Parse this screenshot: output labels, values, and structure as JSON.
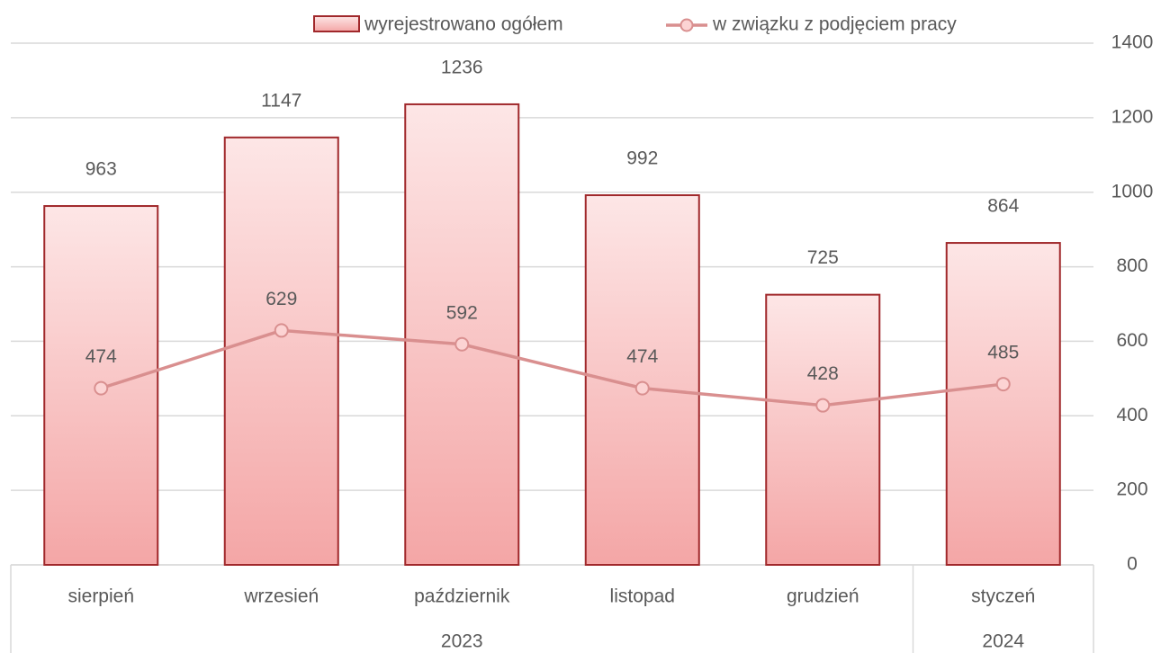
{
  "chart_data": {
    "type": "bar",
    "categories": [
      "sierpień",
      "wrzesień",
      "październik",
      "listopad",
      "grudzień",
      "styczeń"
    ],
    "category_groups": [
      {
        "label": "2023",
        "span": 5
      },
      {
        "label": "2024",
        "span": 1
      }
    ],
    "series": [
      {
        "name": "wyrejestrowano ogółem",
        "type": "bar",
        "color": "#f4a6a6",
        "edge": "#a0282b",
        "values": [
          963,
          1147,
          1236,
          992,
          725,
          864
        ]
      },
      {
        "name": "w związku z podjęciem pracy",
        "type": "line",
        "color": "#d98f8f",
        "values": [
          474,
          629,
          592,
          474,
          428,
          485
        ]
      }
    ],
    "ylim": [
      0,
      1400
    ],
    "yticks": [
      0,
      200,
      400,
      600,
      800,
      1000,
      1200,
      1400
    ],
    "grid": true,
    "legend": "top"
  }
}
